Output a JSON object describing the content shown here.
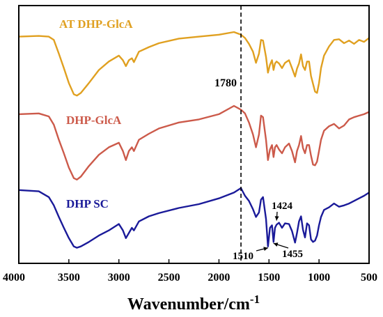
{
  "chart_data": {
    "type": "line",
    "xlabel": "Wavenumber/cm",
    "xlabel_sup": "-1",
    "ylabel": "",
    "xlim": [
      4000,
      500
    ],
    "x_reversed": true,
    "x_ticks": [
      4000,
      3500,
      3000,
      2500,
      2000,
      1500,
      1000,
      500
    ],
    "y_ticks_shown": false,
    "grid": false,
    "colors": {
      "AT DHP-GlcA": "#e0a020",
      "DHP-GlcA": "#cc5a4a",
      "DHP SC": "#1a1a99"
    },
    "vertical_line": {
      "x": 1780,
      "style": "dashed",
      "label": "1780"
    },
    "annotations": [
      {
        "text": "1424",
        "x": 1424
      },
      {
        "text": "1510",
        "x": 1510
      },
      {
        "text": "1455",
        "x": 1455
      }
    ],
    "series": [
      {
        "name": "AT DHP-GlcA",
        "points": [
          [
            4000,
            0.07
          ],
          [
            3800,
            0.06
          ],
          [
            3700,
            0.07
          ],
          [
            3650,
            0.12
          ],
          [
            3600,
            0.33
          ],
          [
            3550,
            0.55
          ],
          [
            3500,
            0.78
          ],
          [
            3450,
            0.95
          ],
          [
            3420,
            0.97
          ],
          [
            3380,
            0.93
          ],
          [
            3300,
            0.78
          ],
          [
            3200,
            0.58
          ],
          [
            3100,
            0.45
          ],
          [
            3000,
            0.36
          ],
          [
            2960,
            0.43
          ],
          [
            2930,
            0.52
          ],
          [
            2900,
            0.43
          ],
          [
            2870,
            0.4
          ],
          [
            2850,
            0.46
          ],
          [
            2800,
            0.3
          ],
          [
            2700,
            0.23
          ],
          [
            2600,
            0.17
          ],
          [
            2400,
            0.1
          ],
          [
            2200,
            0.07
          ],
          [
            2000,
            0.04
          ],
          [
            1850,
            0.0
          ],
          [
            1780,
            0.04
          ],
          [
            1740,
            0.09
          ],
          [
            1700,
            0.18
          ],
          [
            1660,
            0.3
          ],
          [
            1630,
            0.47
          ],
          [
            1600,
            0.33
          ],
          [
            1580,
            0.12
          ],
          [
            1560,
            0.13
          ],
          [
            1530,
            0.38
          ],
          [
            1510,
            0.62
          ],
          [
            1490,
            0.5
          ],
          [
            1470,
            0.43
          ],
          [
            1455,
            0.58
          ],
          [
            1440,
            0.48
          ],
          [
            1424,
            0.45
          ],
          [
            1400,
            0.48
          ],
          [
            1370,
            0.55
          ],
          [
            1340,
            0.47
          ],
          [
            1300,
            0.43
          ],
          [
            1270,
            0.55
          ],
          [
            1240,
            0.68
          ],
          [
            1220,
            0.56
          ],
          [
            1200,
            0.48
          ],
          [
            1180,
            0.34
          ],
          [
            1160,
            0.52
          ],
          [
            1140,
            0.58
          ],
          [
            1120,
            0.45
          ],
          [
            1100,
            0.45
          ],
          [
            1080,
            0.67
          ],
          [
            1060,
            0.79
          ],
          [
            1040,
            0.91
          ],
          [
            1020,
            0.93
          ],
          [
            1000,
            0.78
          ],
          [
            980,
            0.55
          ],
          [
            950,
            0.36
          ],
          [
            900,
            0.22
          ],
          [
            850,
            0.12
          ],
          [
            800,
            0.11
          ],
          [
            750,
            0.17
          ],
          [
            700,
            0.13
          ],
          [
            650,
            0.18
          ],
          [
            600,
            0.12
          ],
          [
            550,
            0.15
          ],
          [
            500,
            0.09
          ]
        ]
      },
      {
        "name": "DHP-GlcA",
        "points": [
          [
            4000,
            0.11
          ],
          [
            3800,
            0.1
          ],
          [
            3700,
            0.14
          ],
          [
            3650,
            0.25
          ],
          [
            3600,
            0.45
          ],
          [
            3550,
            0.63
          ],
          [
            3500,
            0.82
          ],
          [
            3450,
            0.96
          ],
          [
            3420,
            0.98
          ],
          [
            3380,
            0.94
          ],
          [
            3300,
            0.8
          ],
          [
            3200,
            0.65
          ],
          [
            3100,
            0.55
          ],
          [
            3000,
            0.49
          ],
          [
            2960,
            0.6
          ],
          [
            2930,
            0.72
          ],
          [
            2900,
            0.6
          ],
          [
            2870,
            0.55
          ],
          [
            2850,
            0.6
          ],
          [
            2800,
            0.45
          ],
          [
            2700,
            0.37
          ],
          [
            2600,
            0.3
          ],
          [
            2400,
            0.22
          ],
          [
            2200,
            0.18
          ],
          [
            2000,
            0.11
          ],
          [
            1850,
            0.0
          ],
          [
            1780,
            0.05
          ],
          [
            1740,
            0.1
          ],
          [
            1700,
            0.22
          ],
          [
            1660,
            0.38
          ],
          [
            1630,
            0.55
          ],
          [
            1600,
            0.38
          ],
          [
            1580,
            0.13
          ],
          [
            1560,
            0.15
          ],
          [
            1530,
            0.45
          ],
          [
            1510,
            0.72
          ],
          [
            1490,
            0.58
          ],
          [
            1470,
            0.52
          ],
          [
            1455,
            0.68
          ],
          [
            1440,
            0.55
          ],
          [
            1424,
            0.52
          ],
          [
            1400,
            0.58
          ],
          [
            1370,
            0.63
          ],
          [
            1340,
            0.55
          ],
          [
            1300,
            0.5
          ],
          [
            1270,
            0.6
          ],
          [
            1240,
            0.75
          ],
          [
            1220,
            0.6
          ],
          [
            1200,
            0.52
          ],
          [
            1180,
            0.4
          ],
          [
            1160,
            0.56
          ],
          [
            1140,
            0.63
          ],
          [
            1120,
            0.52
          ],
          [
            1100,
            0.52
          ],
          [
            1080,
            0.66
          ],
          [
            1060,
            0.78
          ],
          [
            1040,
            0.79
          ],
          [
            1020,
            0.74
          ],
          [
            1000,
            0.6
          ],
          [
            980,
            0.45
          ],
          [
            950,
            0.33
          ],
          [
            900,
            0.27
          ],
          [
            850,
            0.24
          ],
          [
            800,
            0.3
          ],
          [
            750,
            0.26
          ],
          [
            700,
            0.18
          ],
          [
            650,
            0.15
          ],
          [
            600,
            0.13
          ],
          [
            550,
            0.11
          ],
          [
            500,
            0.08
          ]
        ]
      },
      {
        "name": "DHP SC",
        "points": [
          [
            4000,
            0.03
          ],
          [
            3800,
            0.05
          ],
          [
            3700,
            0.14
          ],
          [
            3650,
            0.27
          ],
          [
            3600,
            0.45
          ],
          [
            3550,
            0.62
          ],
          [
            3500,
            0.78
          ],
          [
            3450,
            0.91
          ],
          [
            3420,
            0.93
          ],
          [
            3380,
            0.91
          ],
          [
            3300,
            0.84
          ],
          [
            3200,
            0.74
          ],
          [
            3100,
            0.66
          ],
          [
            3000,
            0.56
          ],
          [
            2960,
            0.66
          ],
          [
            2930,
            0.78
          ],
          [
            2900,
            0.7
          ],
          [
            2870,
            0.62
          ],
          [
            2850,
            0.66
          ],
          [
            2800,
            0.52
          ],
          [
            2700,
            0.44
          ],
          [
            2600,
            0.39
          ],
          [
            2400,
            0.31
          ],
          [
            2200,
            0.25
          ],
          [
            2000,
            0.16
          ],
          [
            1850,
            0.07
          ],
          [
            1780,
            0.0
          ],
          [
            1740,
            0.12
          ],
          [
            1700,
            0.2
          ],
          [
            1660,
            0.33
          ],
          [
            1630,
            0.45
          ],
          [
            1600,
            0.38
          ],
          [
            1580,
            0.18
          ],
          [
            1560,
            0.14
          ],
          [
            1530,
            0.48
          ],
          [
            1510,
            0.91
          ],
          [
            1490,
            0.62
          ],
          [
            1470,
            0.58
          ],
          [
            1455,
            0.84
          ],
          [
            1440,
            0.62
          ],
          [
            1424,
            0.57
          ],
          [
            1400,
            0.54
          ],
          [
            1370,
            0.62
          ],
          [
            1340,
            0.55
          ],
          [
            1300,
            0.56
          ],
          [
            1270,
            0.67
          ],
          [
            1240,
            0.85
          ],
          [
            1220,
            0.7
          ],
          [
            1200,
            0.52
          ],
          [
            1180,
            0.44
          ],
          [
            1160,
            0.65
          ],
          [
            1140,
            0.77
          ],
          [
            1120,
            0.55
          ],
          [
            1100,
            0.58
          ],
          [
            1080,
            0.8
          ],
          [
            1060,
            0.84
          ],
          [
            1040,
            0.82
          ],
          [
            1020,
            0.74
          ],
          [
            1000,
            0.58
          ],
          [
            980,
            0.45
          ],
          [
            950,
            0.34
          ],
          [
            900,
            0.3
          ],
          [
            850,
            0.24
          ],
          [
            800,
            0.29
          ],
          [
            750,
            0.27
          ],
          [
            700,
            0.24
          ],
          [
            650,
            0.2
          ],
          [
            600,
            0.16
          ],
          [
            550,
            0.12
          ],
          [
            500,
            0.07
          ]
        ]
      }
    ]
  }
}
